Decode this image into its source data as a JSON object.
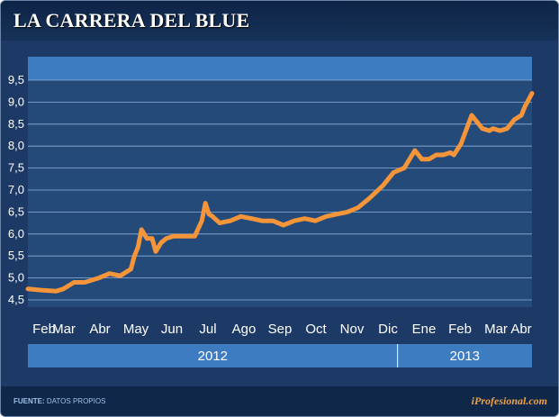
{
  "title": "LA CARRERA DEL BLUE",
  "footer": {
    "source_label": "FUENTE:",
    "source_text": "DATOS PROPIOS",
    "brand": "iProfesional.com"
  },
  "colors": {
    "background": "#1d3a66",
    "plot_area": "#244a7a",
    "line": "#f5953a",
    "band": "#3d7cc0",
    "brand": "#f0a044"
  },
  "chart_data": {
    "type": "line",
    "title": "LA CARRERA DEL BLUE",
    "xlabel": "",
    "ylabel": "",
    "ylim": [
      4.5,
      9.5
    ],
    "yticks": [
      4.5,
      5.0,
      5.5,
      6.0,
      6.5,
      7.0,
      7.5,
      8.0,
      8.5,
      9.0,
      9.5
    ],
    "ytick_labels": [
      "4,5",
      "5,0",
      "5,5",
      "6,0",
      "6,5",
      "7,0",
      "7,5",
      "8,0",
      "8,5",
      "9,0",
      "9,5"
    ],
    "month_labels": [
      "Feb",
      "Mar",
      "Abr",
      "May",
      "Jun",
      "Jul",
      "Ago",
      "Sep",
      "Oct",
      "Nov",
      "Dic",
      "Ene",
      "Feb",
      "Mar",
      "Abr"
    ],
    "years": [
      {
        "label": "2012",
        "months": 11
      },
      {
        "label": "2013",
        "months": 4
      }
    ],
    "grid": true,
    "legend": "none",
    "series": [
      {
        "x": [
          0,
          0.4,
          0.8,
          1.0,
          1.3,
          1.6,
          2.0,
          2.3,
          2.6,
          2.9,
          3.0,
          3.1,
          3.2,
          3.35,
          3.5,
          3.6,
          3.75,
          3.9,
          4.1,
          4.4,
          4.7,
          4.9,
          5.0,
          5.1,
          5.2,
          5.4,
          5.7,
          6.0,
          6.3,
          6.6,
          6.9,
          7.2,
          7.5,
          7.8,
          8.1,
          8.4,
          8.7,
          9.0,
          9.3,
          9.6,
          10.0,
          10.3,
          10.6,
          10.9,
          11.1,
          11.3,
          11.5,
          11.7,
          11.9,
          12.0,
          12.2,
          12.5,
          12.8,
          13.0,
          13.1,
          13.3,
          13.5,
          13.7,
          13.9,
          14.0,
          14.2
        ],
        "y": [
          4.75,
          4.72,
          4.7,
          4.75,
          4.9,
          4.9,
          5.0,
          5.1,
          5.05,
          5.2,
          5.5,
          5.7,
          6.1,
          5.9,
          5.9,
          5.6,
          5.8,
          5.9,
          5.95,
          5.95,
          5.95,
          6.3,
          6.7,
          6.45,
          6.4,
          6.25,
          6.3,
          6.4,
          6.35,
          6.3,
          6.3,
          6.2,
          6.3,
          6.35,
          6.3,
          6.4,
          6.45,
          6.5,
          6.6,
          6.8,
          7.1,
          7.4,
          7.5,
          7.9,
          7.7,
          7.7,
          7.8,
          7.8,
          7.85,
          7.8,
          8.05,
          8.7,
          8.4,
          8.35,
          8.4,
          8.35,
          8.4,
          8.6,
          8.7,
          8.9,
          9.2
        ]
      }
    ]
  }
}
